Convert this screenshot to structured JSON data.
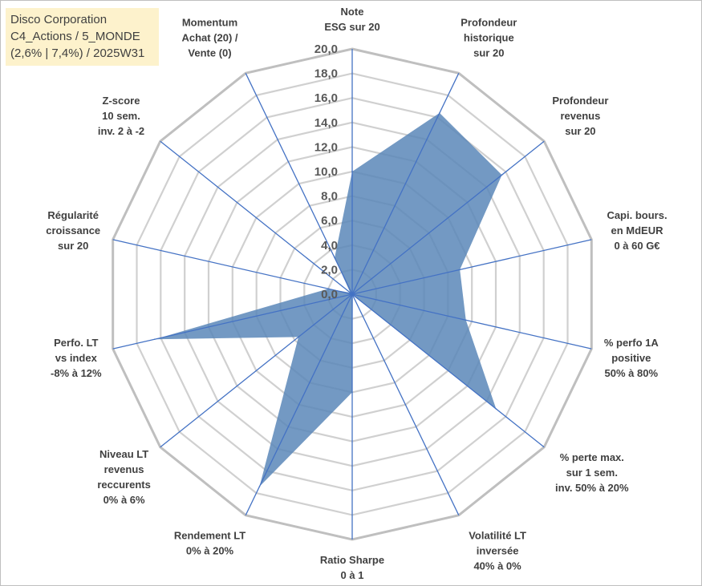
{
  "header_box": {
    "line1": "Disco Corporation",
    "line2": "C4_Actions / 5_MONDE",
    "line3": "(2,6% | 7,4%) / 2025W31"
  },
  "colors": {
    "fill": "#5b87b9",
    "spoke": "#4472c4",
    "grid": "#d0d0d0",
    "outer_grid": "#bfbfbf",
    "info_box_bg": "#fdf2cc"
  },
  "chart_data": {
    "type": "radar",
    "r_range": [
      0,
      20
    ],
    "r_step": 2,
    "tick_labels": [
      "0,0",
      "2,0",
      "4,0",
      "6,0",
      "8,0",
      "10,0",
      "12,0",
      "14,0",
      "16,0",
      "18,0",
      "20,0"
    ],
    "grid": true,
    "categories": [
      "Note ESG sur 20",
      "Profondeur historique sur 20",
      "Profondeur revenus sur 20",
      "Capi. bours. en MdEUR 0 à 60 G€",
      "% perfo 1A positive 50% à 80%",
      "% perte max. sur 1 sem. inv. 50% à 20%",
      "Volatilité LT inversée 40% à 0%",
      "Ratio Sharpe 0 à 1",
      "Rendement LT 0% à 20%",
      "Niveau LT revenus reccurents 0% à 6%",
      "Perfo. LT vs index -8% à 12%",
      "Régularité croissance sur 20",
      "Z-score 10 sem. inv. 2 à -2",
      "Momentum Achat (20) / Vente (0)"
    ],
    "category_lines": [
      [
        "Note",
        "ESG sur 20"
      ],
      [
        "Profondeur",
        "historique",
        "sur 20"
      ],
      [
        "Profondeur",
        "revenus",
        "sur 20"
      ],
      [
        "Capi. bours.",
        "en MdEUR",
        "0 à 60 G€"
      ],
      [
        "% perfo 1A",
        "positive",
        "50% à 80%"
      ],
      [
        "% perte max.",
        "sur 1 sem.",
        "inv. 50% à 20%"
      ],
      [
        "Volatilité LT",
        "inversée",
        "40% à 0%"
      ],
      [
        "Ratio Sharpe",
        "0 à 1"
      ],
      [
        "Rendement LT",
        "0% à 20%"
      ],
      [
        "Niveau LT",
        "revenus",
        "reccurents",
        "0% à 6%"
      ],
      [
        "Perfo. LT",
        "vs index",
        "-8% à 12%"
      ],
      [
        "Régularité",
        "croissance",
        "sur 20"
      ],
      [
        "Z-score",
        "10 sem.",
        "inv. 2 à -2"
      ],
      [
        "Momentum",
        "Achat (20) /",
        "Vente (0)"
      ]
    ],
    "values": [
      10.0,
      16.4,
      15.6,
      9.0,
      9.5,
      15.0,
      0.1,
      8.0,
      17.4,
      5.6,
      16.5,
      2.0,
      0.2,
      3.3
    ]
  }
}
